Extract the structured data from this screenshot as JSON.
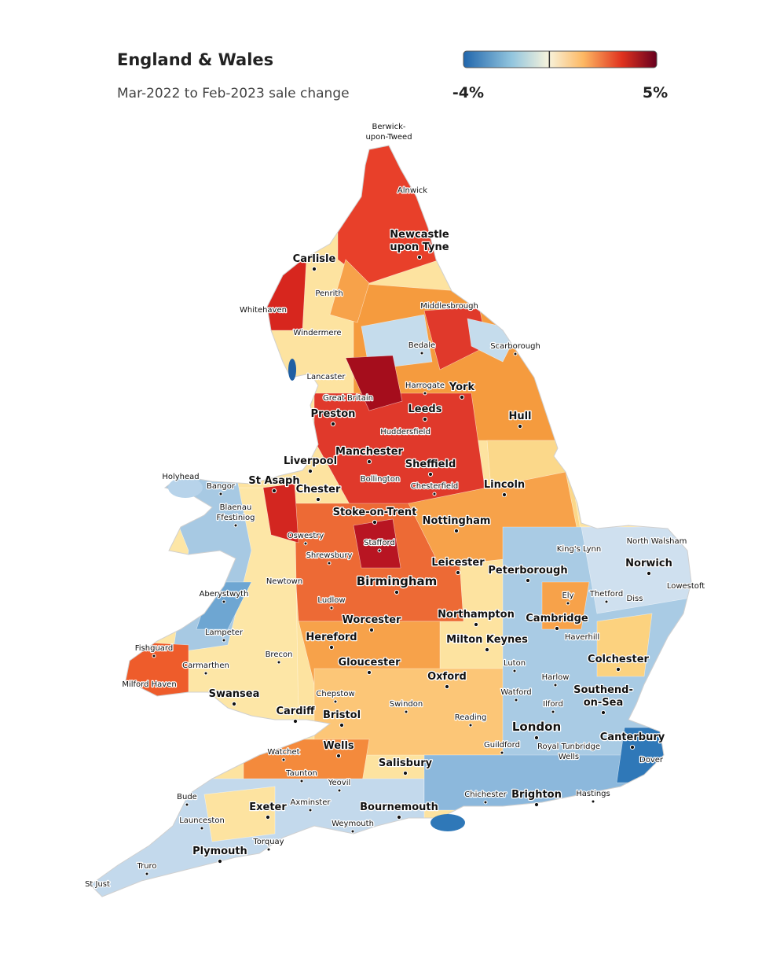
{
  "header": {
    "title": "England & Wales",
    "subtitle": "Mar-2022 to Feb-2023 sale change"
  },
  "legend": {
    "min": {
      "value": -4,
      "label": "-4%"
    },
    "max": {
      "value": 5,
      "label": "5%"
    }
  },
  "places": [
    [
      "Berwick-",
      "upon-Tweed"
    ],
    "Alnwick",
    [
      "Newcastle",
      "upon Tyne"
    ],
    "Carlisle",
    "Penrith",
    "Whitehaven",
    "Middlesbrough",
    "Windermere",
    "Scarborough",
    "Bedale",
    "Lancaster",
    "Harrogate",
    "York",
    "Great Britain",
    "Leeds",
    "Preston",
    "Hull",
    "Huddersfield",
    "Manchester",
    "Sheffield",
    "Liverpool",
    "Holyhead",
    "St Asaph",
    "Bangor",
    "Bollington",
    "Chesterfield",
    "Chester",
    "Lincoln",
    [
      "Blaenau",
      "Ffestiniog"
    ],
    "Stoke-on-Trent",
    "Nottingham",
    "Oswestry",
    "North Walsham",
    "Stafford",
    "King's Lynn",
    "Shrewsbury",
    "Leicester",
    "Norwich",
    "Peterborough",
    "Birmingham",
    "Newtown",
    "Lowestoft",
    "Aberystwyth",
    "Ely",
    "Thetford",
    "Diss",
    "Ludlow",
    "Northampton",
    "Cambridge",
    "Worcester",
    "Lampeter",
    "Haverhill",
    "Hereford",
    "Milton Keynes",
    "Fishguard",
    "Brecon",
    "Colchester",
    "Gloucester",
    "Carmarthen",
    "Luton",
    "Oxford",
    "Harlow",
    "Milford Haven",
    [
      "Southend-",
      "on-Sea"
    ],
    "Watford",
    "Swansea",
    "Chepstow",
    "Swindon",
    "Ilford",
    "Cardiff",
    "Bristol",
    "Reading",
    "London",
    "Canterbury",
    "Guildford",
    [
      "Royal Tunbridge",
      "Wells"
    ],
    "Wells",
    "Watchet",
    "Dover",
    "Salisbury",
    "Taunton",
    "Yeovil",
    "Brighton",
    "Chichester",
    "Hastings",
    "Bude",
    "Axminster",
    "Exeter",
    "Bournemouth",
    "Launceston",
    "Weymouth",
    "Torquay",
    "Plymouth",
    "Truro",
    "St Just"
  ]
}
